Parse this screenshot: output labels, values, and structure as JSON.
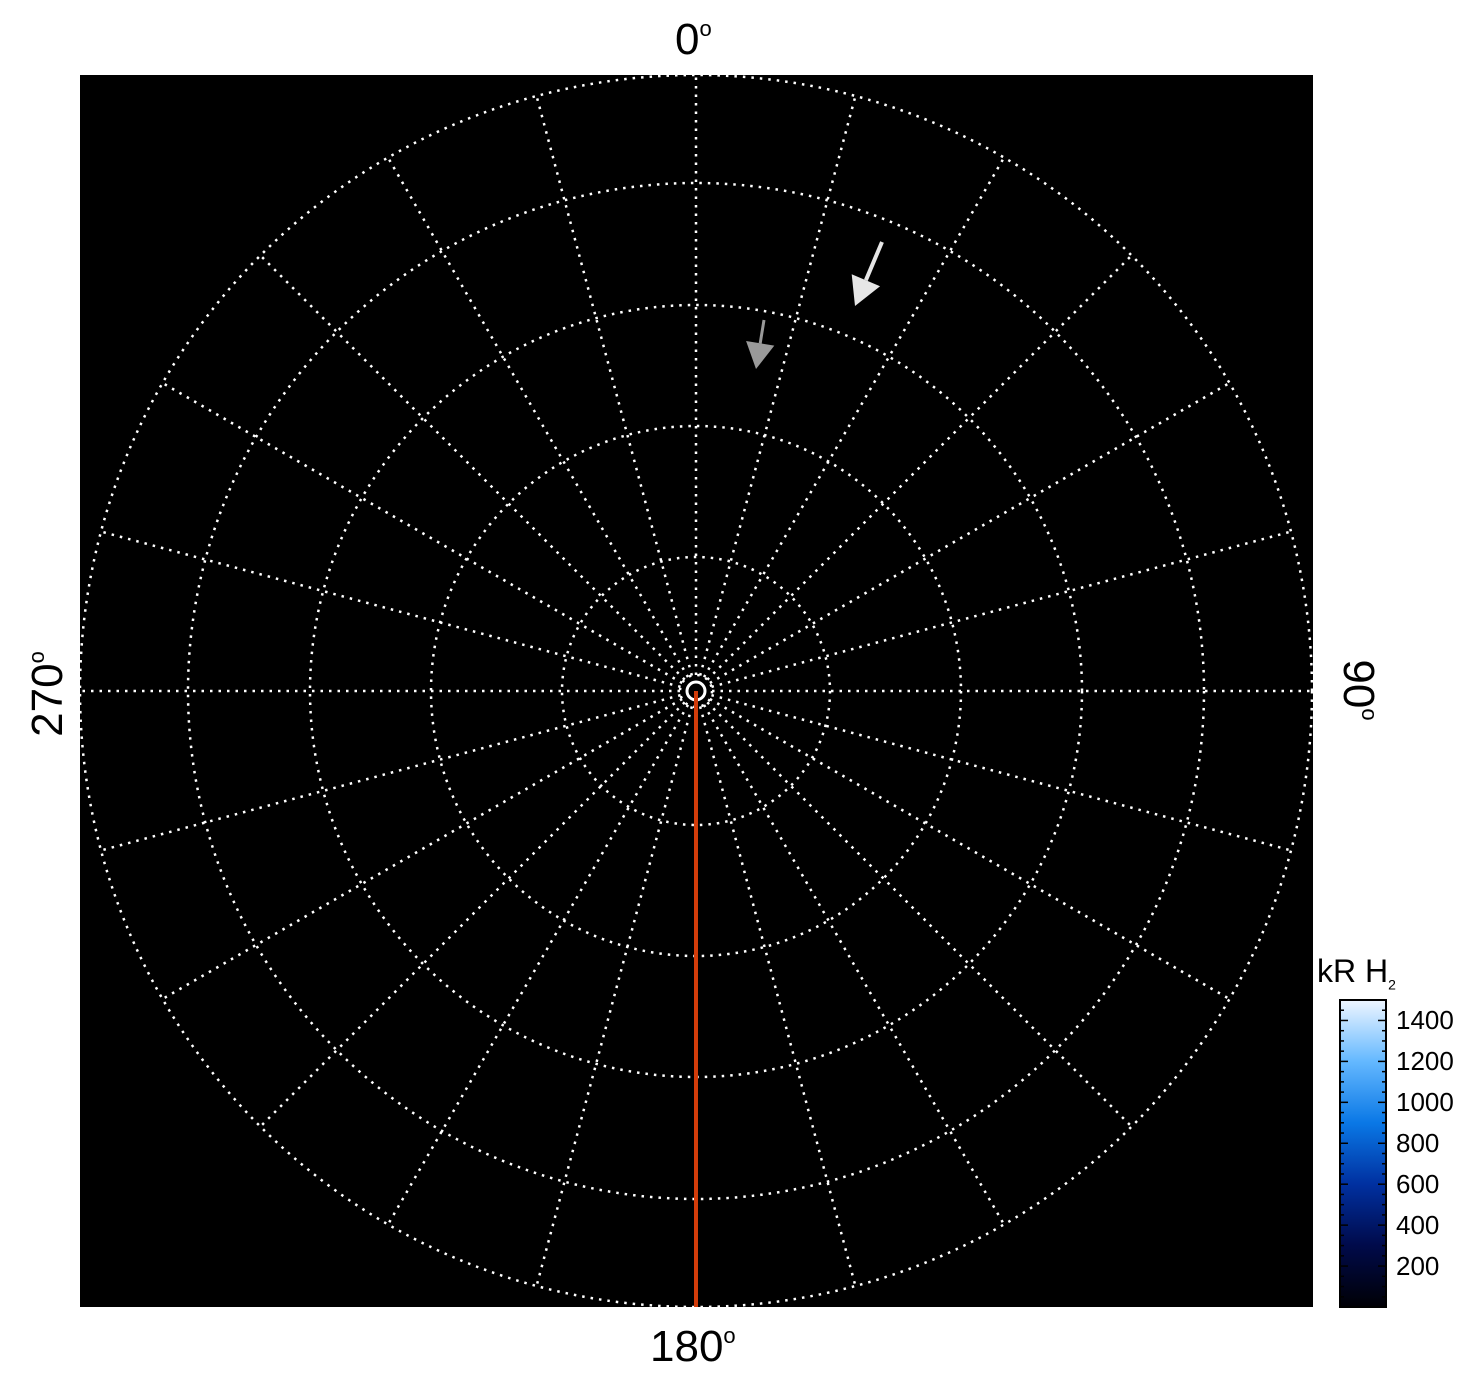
{
  "chart_data": {
    "type": "polar",
    "angle_labels": [
      {
        "angle": 0,
        "text": "0",
        "unit": "o"
      },
      {
        "angle": 90,
        "text": "90",
        "unit": "o"
      },
      {
        "angle": 180,
        "text": "180",
        "unit": "o"
      },
      {
        "angle": 270,
        "text": "270",
        "unit": "o"
      }
    ],
    "meridian_step_deg": 15,
    "grid": "dotted white",
    "background": "#000000",
    "reference_line": {
      "angle": 180,
      "color": "#d23c0a"
    },
    "arrows": [
      {
        "color": "#e6e6e6",
        "direction": "toward center-left (down-left)"
      },
      {
        "color": "#9a9a9a",
        "direction": "down"
      }
    ],
    "colorbar": {
      "title": "kR H",
      "title_sub": "2",
      "range": [
        0,
        1500
      ],
      "ticks": [
        "1400",
        "1200",
        "1000",
        "800",
        "600",
        "400",
        "200"
      ],
      "tick_values": [
        1400,
        1200,
        1000,
        800,
        600,
        400,
        200
      ],
      "colors": [
        "#000005",
        "#000a4a",
        "#0030a0",
        "#0a78e6",
        "#64b8ff",
        "#eef6ff"
      ]
    }
  }
}
